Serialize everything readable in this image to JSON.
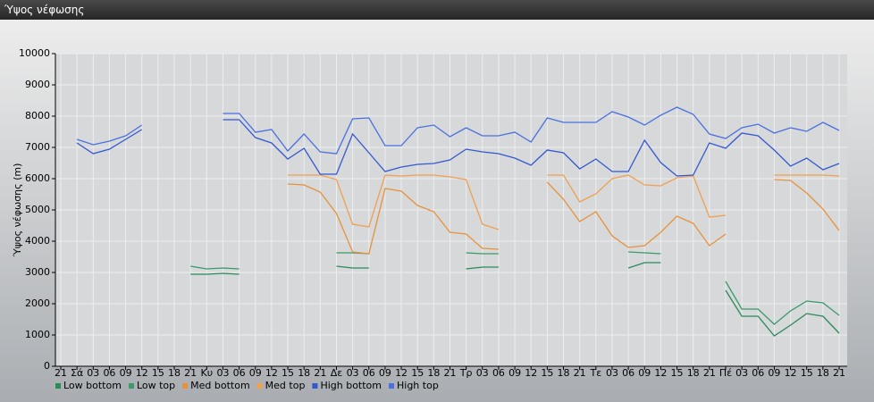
{
  "window": {
    "title": "Ύψος νέφωσης"
  },
  "chart_data": {
    "type": "line",
    "ylabel": "Ύψος νέφωσης (m)",
    "categories": [
      "21",
      "Σά",
      "03",
      "06",
      "09",
      "12",
      "15",
      "18",
      "21",
      "Κυ",
      "03",
      "06",
      "09",
      "12",
      "15",
      "18",
      "21",
      "Δε",
      "03",
      "06",
      "09",
      "12",
      "15",
      "18",
      "21",
      "Τρ",
      "03",
      "06",
      "09",
      "12",
      "15",
      "18",
      "21",
      "Τε",
      "03",
      "06",
      "09",
      "12",
      "15",
      "18",
      "21",
      "Πέ",
      "03",
      "06",
      "09",
      "12",
      "15",
      "18",
      "21"
    ],
    "ylim": [
      0,
      10000
    ],
    "yticks": [
      0,
      1000,
      2000,
      3000,
      4000,
      5000,
      6000,
      7000,
      8000,
      9000,
      10000
    ],
    "grid": true,
    "legend": "bottom-left",
    "series": [
      {
        "name": "Low bottom",
        "color": "#2a8a5a",
        "values": [
          null,
          null,
          null,
          null,
          null,
          null,
          null,
          null,
          2943,
          2943,
          2971,
          2943,
          null,
          null,
          null,
          null,
          null,
          3200,
          3143,
          3143,
          null,
          null,
          null,
          null,
          null,
          3114,
          3171,
          3171,
          null,
          null,
          null,
          null,
          null,
          null,
          null,
          3143,
          3314,
          3314,
          null,
          null,
          null,
          2429,
          1600,
          1600,
          971,
          1314,
          1686,
          1600,
          1057
        ]
      },
      {
        "name": "Low top",
        "color": "#3a9a6a",
        "values": [
          null,
          null,
          null,
          null,
          null,
          null,
          null,
          null,
          3200,
          3114,
          3143,
          3114,
          null,
          null,
          null,
          null,
          null,
          3629,
          3629,
          3600,
          null,
          null,
          null,
          null,
          null,
          3629,
          3600,
          3600,
          null,
          null,
          null,
          null,
          null,
          null,
          null,
          3657,
          3629,
          3600,
          null,
          null,
          null,
          2714,
          1829,
          1829,
          1343,
          1771,
          2086,
          2029,
          1629
        ]
      },
      {
        "name": "Med bottom",
        "color": "#e8913a",
        "values": [
          null,
          null,
          null,
          null,
          null,
          null,
          null,
          null,
          null,
          null,
          null,
          null,
          null,
          null,
          5829,
          5800,
          5571,
          4886,
          3657,
          3600,
          5686,
          5600,
          5143,
          4943,
          4286,
          4229,
          3771,
          3743,
          null,
          null,
          5886,
          5343,
          4629,
          4943,
          4171,
          3800,
          3857,
          4286,
          4800,
          4571,
          3857,
          4229,
          null,
          null,
          5971,
          5943,
          5543,
          5029,
          4343
        ]
      },
      {
        "name": "Med top",
        "color": "#f0a050",
        "values": [
          null,
          null,
          null,
          null,
          null,
          null,
          null,
          null,
          null,
          null,
          null,
          null,
          null,
          null,
          6114,
          6114,
          6114,
          5971,
          4543,
          4457,
          6114,
          6086,
          6114,
          6114,
          6057,
          5971,
          4543,
          4371,
          null,
          null,
          6114,
          6114,
          5257,
          5514,
          6000,
          6114,
          5800,
          5771,
          6029,
          6086,
          4771,
          4829,
          null,
          null,
          6114,
          6114,
          6114,
          6114,
          6086
        ]
      },
      {
        "name": "High bottom",
        "color": "#3358d0",
        "values": [
          null,
          7143,
          6800,
          6943,
          7257,
          7571,
          null,
          null,
          null,
          null,
          7886,
          7886,
          7314,
          7143,
          6629,
          6971,
          6143,
          6143,
          7429,
          6829,
          6229,
          6371,
          6457,
          6486,
          6600,
          6943,
          6857,
          6800,
          6657,
          6429,
          6914,
          6829,
          6314,
          6629,
          6229,
          6229,
          7229,
          6514,
          6086,
          6114,
          7143,
          6971,
          7457,
          7371,
          6914,
          6400,
          6657,
          6286,
          6486
        ]
      },
      {
        "name": "High top",
        "color": "#4a70e0",
        "values": [
          null,
          7257,
          7086,
          7200,
          7371,
          7714,
          null,
          null,
          null,
          null,
          8086,
          8086,
          7486,
          7571,
          6886,
          7429,
          6857,
          6800,
          7914,
          7943,
          7057,
          7057,
          7629,
          7714,
          7343,
          7629,
          7371,
          7371,
          7486,
          7171,
          7943,
          7800,
          7800,
          7800,
          8143,
          7971,
          7714,
          8029,
          8286,
          8057,
          7429,
          7286,
          7629,
          7743,
          7457,
          7629,
          7514,
          7800,
          7543
        ]
      }
    ]
  }
}
